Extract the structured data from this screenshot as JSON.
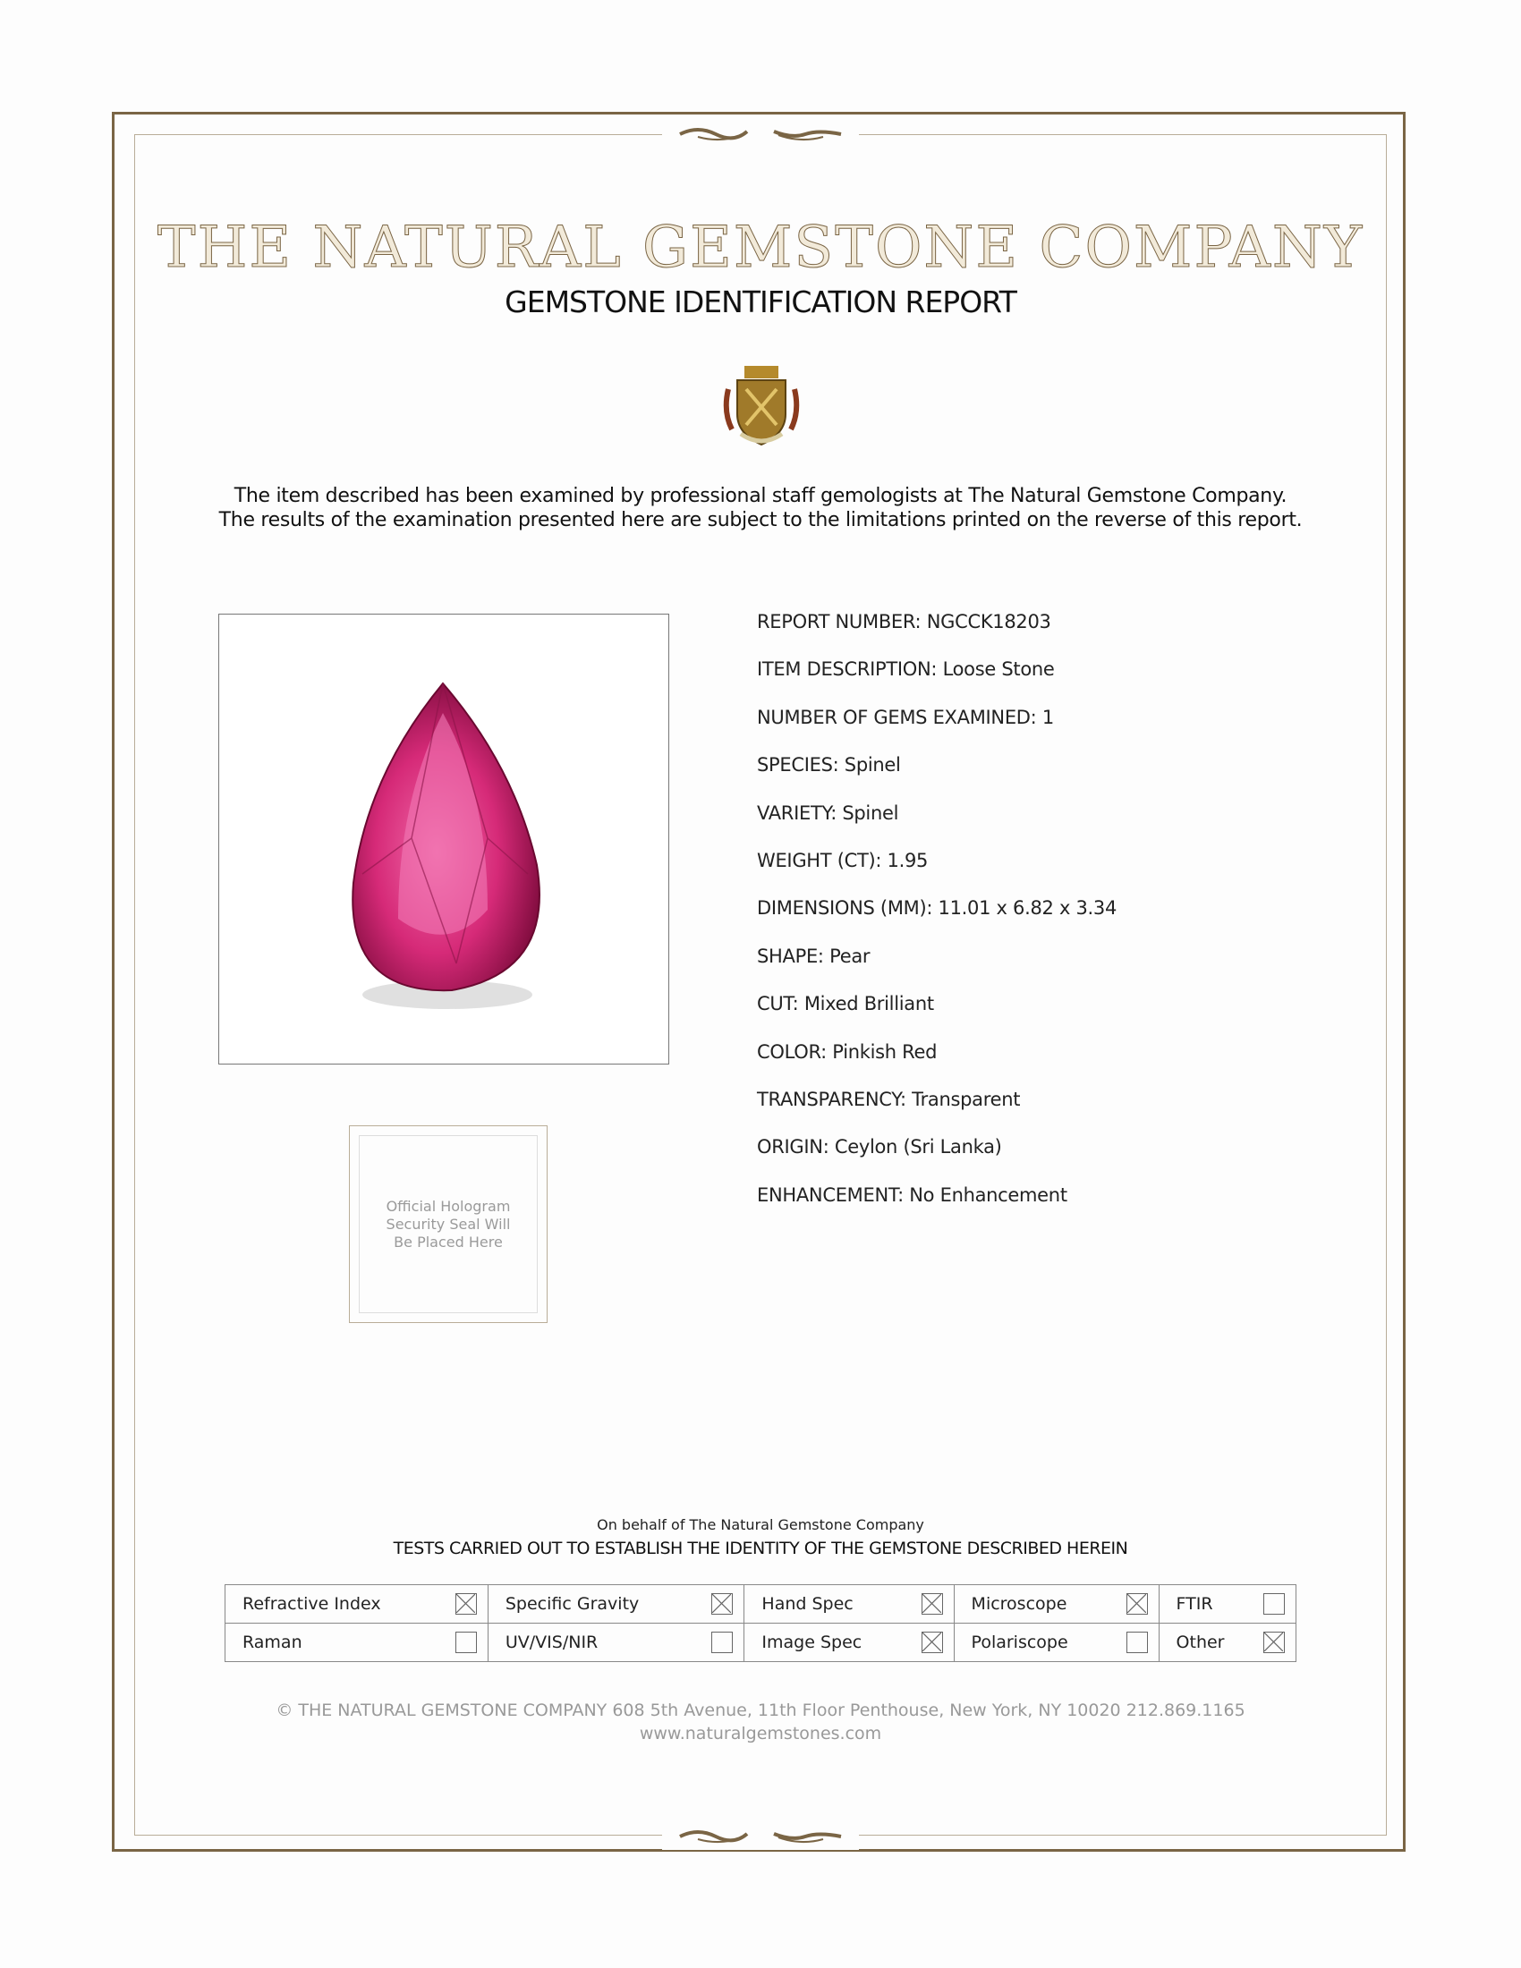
{
  "header": {
    "company": "THE NATURAL GEMSTONE COMPANY",
    "report_title": "GEMSTONE IDENTIFICATION REPORT"
  },
  "intro": [
    "The item described has been examined by professional staff gemologists at The Natural Gemstone Company.",
    "The results of the examination presented here are subject to the limitations printed on the reverse of this report."
  ],
  "hologram_text": [
    "Official Hologram",
    "Security Seal Will",
    "Be Placed Here"
  ],
  "fields": [
    {
      "label": "REPORT NUMBER:",
      "value": "NGCCK18203"
    },
    {
      "label": "ITEM DESCRIPTION:",
      "value": "Loose Stone"
    },
    {
      "label": "NUMBER OF GEMS EXAMINED:",
      "value": "1"
    },
    {
      "label": "SPECIES:",
      "value": "Spinel"
    },
    {
      "label": "VARIETY:",
      "value": "Spinel"
    },
    {
      "label": "WEIGHT (CT):",
      "value": "1.95"
    },
    {
      "label": "DIMENSIONS (MM):",
      "value": "11.01 x 6.82 x 3.34"
    },
    {
      "label": "SHAPE:",
      "value": "Pear"
    },
    {
      "label": "CUT:",
      "value": "Mixed Brilliant"
    },
    {
      "label": "COLOR:",
      "value": "Pinkish Red"
    },
    {
      "label": "TRANSPARENCY:",
      "value": "Transparent"
    },
    {
      "label": "ORIGIN:",
      "value": "Ceylon (Sri Lanka)"
    },
    {
      "label": "ENHANCEMENT:",
      "value": "No Enhancement"
    }
  ],
  "tests": {
    "behalf": "On behalf of The Natural Gemstone Company",
    "title": "TESTS CARRIED OUT TO ESTABLISH THE IDENTITY OF THE GEMSTONE DESCRIBED HEREIN",
    "rows": [
      [
        {
          "label": "Refractive Index",
          "checked": true
        },
        {
          "label": "Specific Gravity",
          "checked": true
        },
        {
          "label": "Hand Spec",
          "checked": true
        },
        {
          "label": "Microscope",
          "checked": true
        },
        {
          "label": "FTIR",
          "checked": false
        }
      ],
      [
        {
          "label": "Raman",
          "checked": false
        },
        {
          "label": "UV/VIS/NIR",
          "checked": false
        },
        {
          "label": "Image Spec",
          "checked": true
        },
        {
          "label": "Polariscope",
          "checked": false
        },
        {
          "label": "Other",
          "checked": true
        }
      ]
    ]
  },
  "footer": {
    "address": "© THE NATURAL GEMSTONE COMPANY  608 5th Avenue, 11th Floor Penthouse, New York, NY  10020   212.869.1165",
    "website": "www.naturalgemstones.com"
  },
  "colors": {
    "border": "#7a6545",
    "gold": "#a8926c",
    "gem": "#c8185c"
  }
}
